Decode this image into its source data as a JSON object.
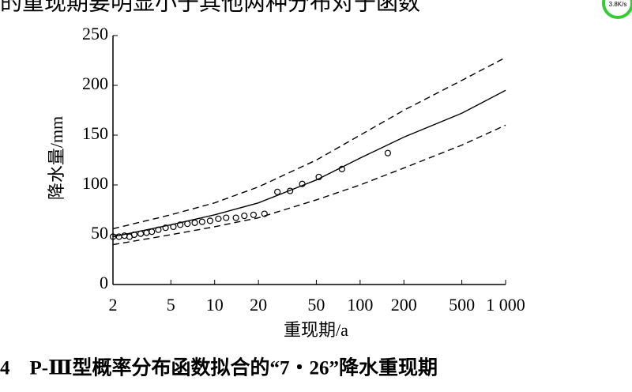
{
  "page_text": "的重现期要明显小于其他两种分布对于函数",
  "status_badge": "3.8K/s",
  "chart_data": {
    "type": "line",
    "xlabel": "重现期/a",
    "ylabel": "降水量/mm",
    "xlog": true,
    "xlim": [
      2,
      1000
    ],
    "ylim": [
      0,
      250
    ],
    "xticks": [
      2,
      5,
      10,
      20,
      50,
      100,
      200,
      500,
      {
        "value": 1000,
        "label": "1 000"
      }
    ],
    "yticks": [
      0,
      50,
      100,
      150,
      200,
      250
    ],
    "series": [
      {
        "style": "solid",
        "color": "#000000",
        "x": [
          2,
          5,
          10,
          20,
          50,
          100,
          200,
          500,
          1000
        ],
        "values": [
          48,
          60,
          70,
          82,
          105,
          127,
          148,
          172,
          195
        ]
      },
      {
        "style": "dashed",
        "color": "#000000",
        "x": [
          2,
          5,
          10,
          20,
          50,
          100,
          200,
          500,
          1000
        ],
        "values": [
          56,
          70,
          82,
          98,
          125,
          150,
          175,
          205,
          228
        ]
      },
      {
        "style": "dashed",
        "color": "#000000",
        "x": [
          2,
          5,
          10,
          20,
          50,
          100,
          200,
          500,
          1000
        ],
        "values": [
          40,
          50,
          58,
          67,
          85,
          100,
          117,
          140,
          160
        ]
      },
      {
        "style": "markers",
        "color": "#000000",
        "x": [
          2,
          2.2,
          2.4,
          2.6,
          2.8,
          3.1,
          3.4,
          3.7,
          4.1,
          4.6,
          5.2,
          5.8,
          6.5,
          7.3,
          8.2,
          9.3,
          10.6,
          12,
          14,
          16,
          18.5,
          22,
          27,
          33,
          40,
          52,
          75,
          155
        ],
        "values": [
          48,
          48,
          49,
          48,
          50,
          51,
          52,
          53,
          55,
          57,
          58,
          60,
          61,
          62,
          63,
          64,
          66,
          67,
          67,
          69,
          70,
          71,
          93,
          94,
          101,
          108,
          116,
          132
        ]
      }
    ]
  },
  "caption": "4　P-Ⅲ型概率分布函数拟合的“7・26”降水重现期"
}
